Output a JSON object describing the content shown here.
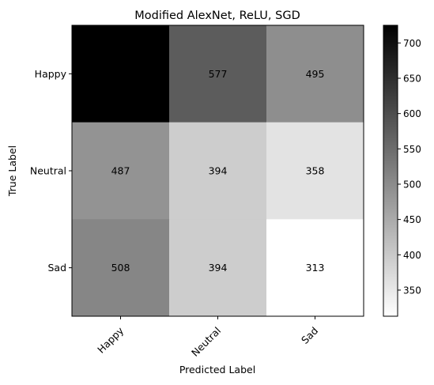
{
  "chart_data": {
    "type": "heatmap",
    "title": "Modified AlexNet, ReLU, SGD",
    "xlabel": "Predicted Label",
    "ylabel": "True Label",
    "x_categories": [
      "Happy",
      "Neutral",
      "Sad"
    ],
    "y_categories": [
      "Happy",
      "Neutral",
      "Sad"
    ],
    "values": [
      [
        725,
        577,
        495
      ],
      [
        487,
        394,
        358
      ],
      [
        508,
        394,
        313
      ]
    ],
    "colormap": "gray_r",
    "color_range": [
      313,
      725
    ],
    "colorbar_ticks": [
      350,
      400,
      450,
      500,
      550,
      600,
      650,
      700
    ],
    "grid": false
  }
}
